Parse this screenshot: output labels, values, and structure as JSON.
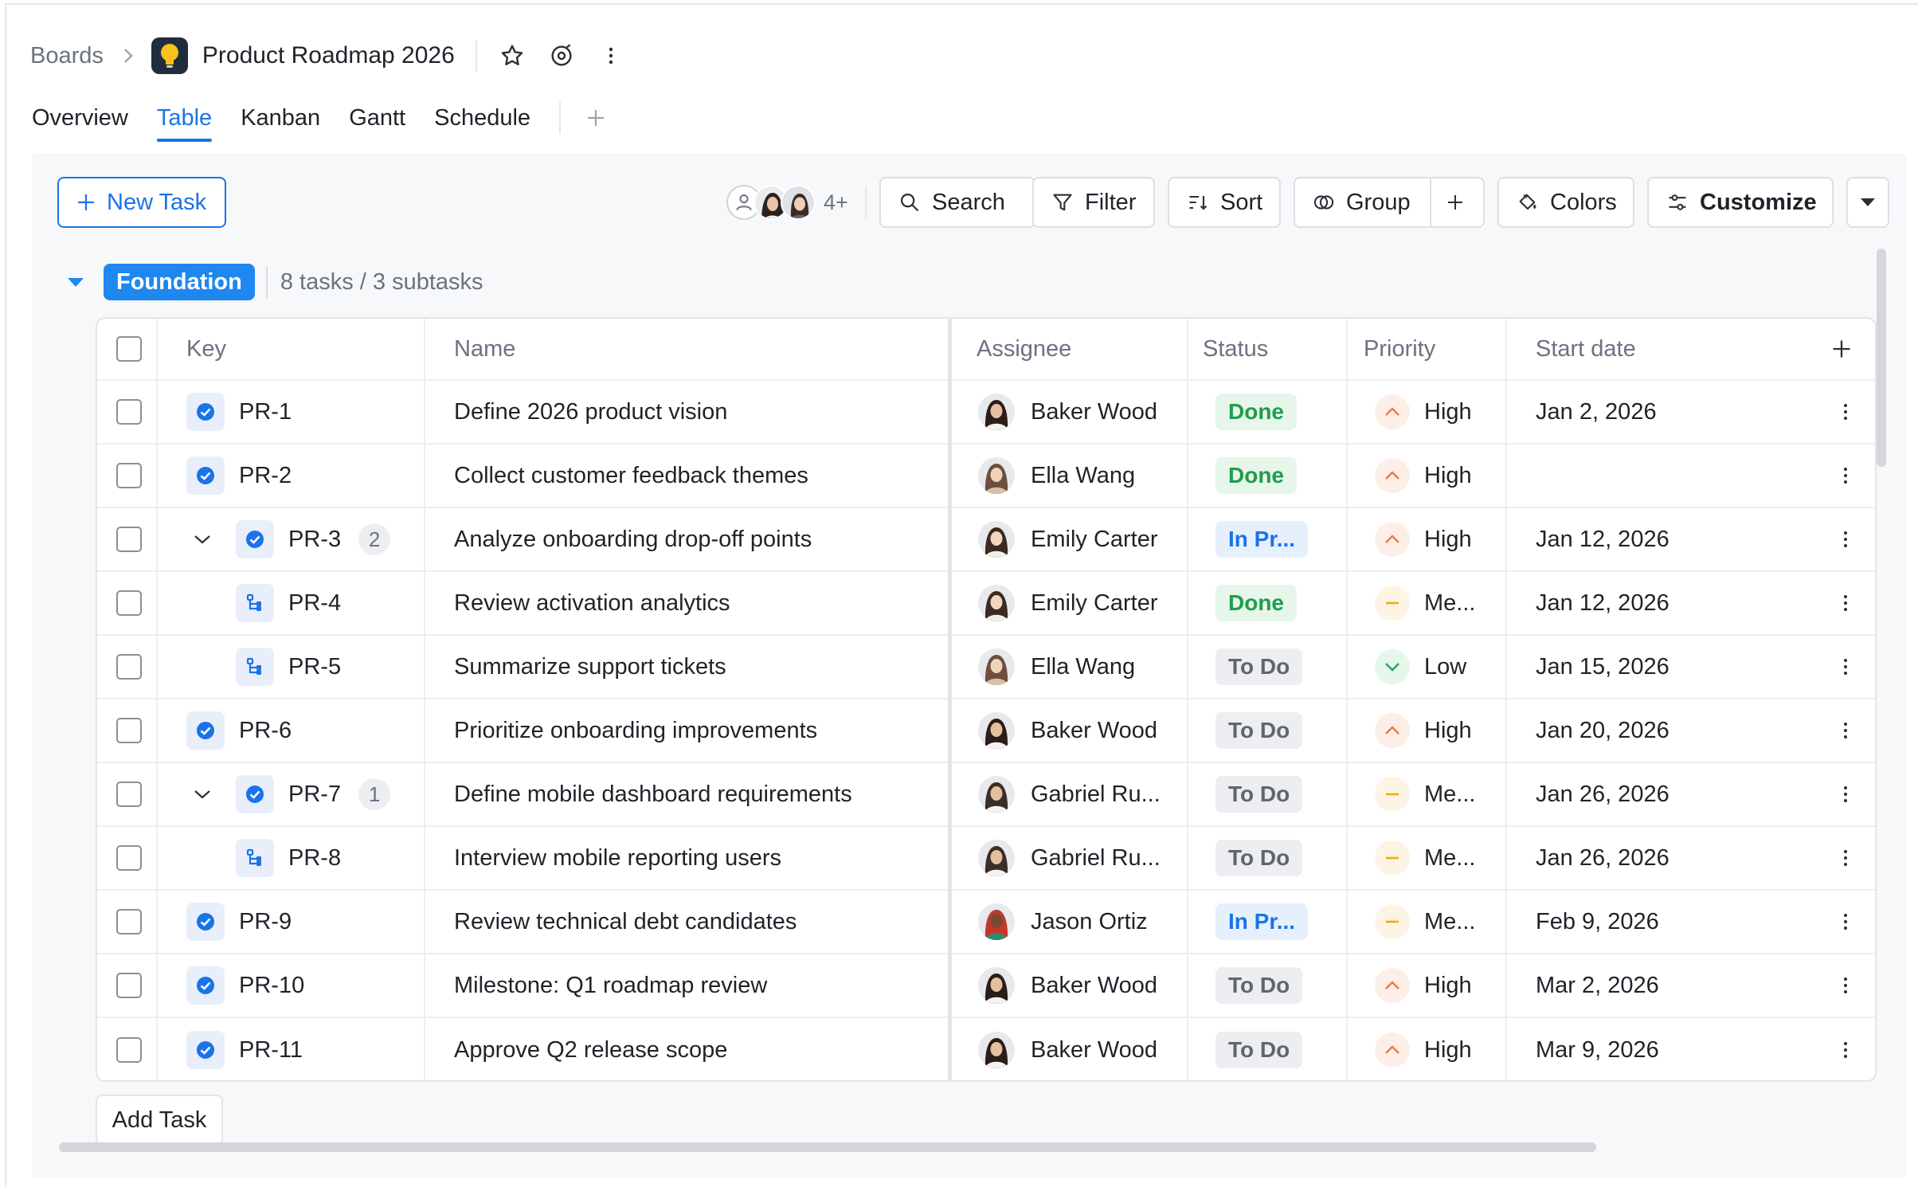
{
  "breadcrumb": {
    "root": "Boards",
    "title": "Product Roadmap 2026"
  },
  "tabs": [
    "Overview",
    "Table",
    "Kanban",
    "Gantt",
    "Schedule"
  ],
  "active_tab": "Table",
  "toolbar": {
    "new_task": "New Task",
    "members_more": "4+",
    "search": "Search",
    "filter": "Filter",
    "sort": "Sort",
    "group": "Group",
    "colors": "Colors",
    "customize": "Customize"
  },
  "group": {
    "name": "Foundation",
    "summary": "8 tasks / 3 subtasks"
  },
  "columns": {
    "key": "Key",
    "name": "Name",
    "assignee": "Assignee",
    "status": "Status",
    "priority": "Priority",
    "start_date": "Start date"
  },
  "rows": [
    {
      "key": "PR-1",
      "name": "Define 2026 product vision",
      "assignee": "Baker Wood",
      "status": "Done",
      "priority": "High",
      "start": "Jan 2, 2026",
      "level": 0,
      "type": "task"
    },
    {
      "key": "PR-2",
      "name": "Collect customer feedback themes",
      "assignee": "Ella Wang",
      "status": "Done",
      "priority": "High",
      "start": "",
      "level": 0,
      "type": "task"
    },
    {
      "key": "PR-3",
      "name": "Analyze onboarding drop-off points",
      "assignee": "Emily Carter",
      "status": "In Pr...",
      "priority": "High",
      "start": "Jan 12, 2026",
      "level": 0,
      "type": "task",
      "subtasks": "2"
    },
    {
      "key": "PR-4",
      "name": "Review activation analytics",
      "assignee": "Emily Carter",
      "status": "Done",
      "priority": "Me...",
      "start": "Jan 12, 2026",
      "level": 1,
      "type": "subtask"
    },
    {
      "key": "PR-5",
      "name": "Summarize support tickets",
      "assignee": "Ella Wang",
      "status": "To Do",
      "priority": "Low",
      "start": "Jan 15, 2026",
      "level": 1,
      "type": "subtask"
    },
    {
      "key": "PR-6",
      "name": "Prioritize onboarding improvements",
      "assignee": "Baker Wood",
      "status": "To Do",
      "priority": "High",
      "start": "Jan 20, 2026",
      "level": 0,
      "type": "task"
    },
    {
      "key": "PR-7",
      "name": "Define mobile dashboard requirements",
      "assignee": "Gabriel Ru...",
      "status": "To Do",
      "priority": "Me...",
      "start": "Jan 26, 2026",
      "level": 0,
      "type": "task",
      "subtasks": "1"
    },
    {
      "key": "PR-8",
      "name": "Interview mobile reporting users",
      "assignee": "Gabriel Ru...",
      "status": "To Do",
      "priority": "Me...",
      "start": "Jan 26, 2026",
      "level": 1,
      "type": "subtask"
    },
    {
      "key": "PR-9",
      "name": "Review technical debt candidates",
      "assignee": "Jason Ortiz",
      "status": "In Pr...",
      "priority": "Me...",
      "start": "Feb 9, 2026",
      "level": 0,
      "type": "task"
    },
    {
      "key": "PR-10",
      "name": "Milestone: Q1 roadmap review",
      "assignee": "Baker Wood",
      "status": "To Do",
      "priority": "High",
      "start": "Mar 2, 2026",
      "level": 0,
      "type": "task"
    },
    {
      "key": "PR-11",
      "name": "Approve Q2 release scope",
      "assignee": "Baker Wood",
      "status": "To Do",
      "priority": "High",
      "start": "Mar 9, 2026",
      "level": 0,
      "type": "task"
    }
  ],
  "footer": {
    "add_task": "Add Task"
  },
  "colors": {
    "accent": "#1a73e8",
    "group_badge": "#1e88f0",
    "done": "#1f9d4a",
    "high": "#f07a3c",
    "medium": "#f2a81d",
    "low": "#22a55a"
  }
}
